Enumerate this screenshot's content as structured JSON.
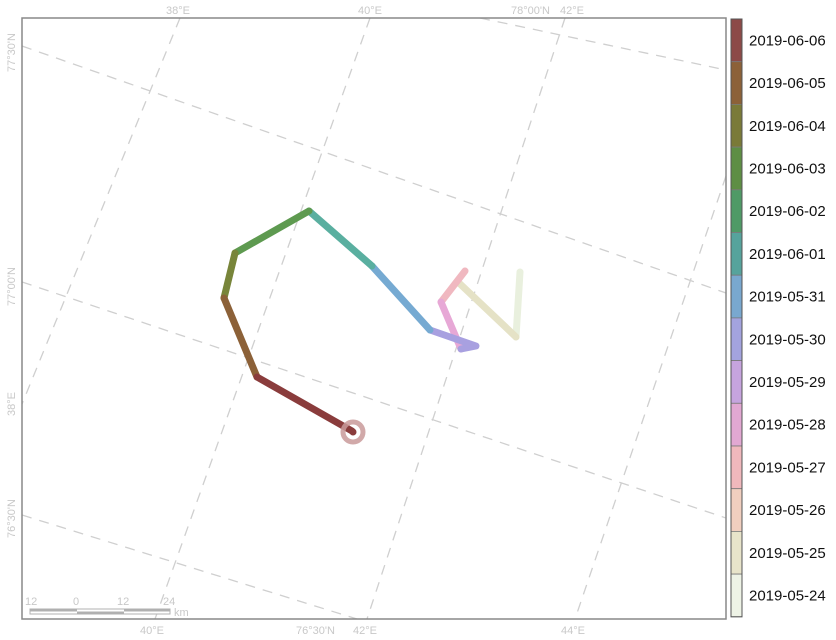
{
  "map": {
    "grid_labels": {
      "top": [
        "38°E",
        "40°E",
        "78°00'N",
        "42°E"
      ],
      "bottom": [
        "40°E",
        "76°30'N",
        "42°E",
        "44°E"
      ],
      "left": [
        "77°30'N",
        "77°00'N",
        "38°E",
        "76°30'N"
      ]
    },
    "scale_bar": {
      "ticks": [
        "12",
        "0",
        "12",
        "24"
      ],
      "unit": "km"
    },
    "track_colors": [
      "#e9f0de",
      "#e5e2c6",
      "#f0b8c0",
      "#e7a8d6",
      "#a8a0e0",
      "#76aad2",
      "#5aafa0",
      "#5e9a50",
      "#78853a",
      "#8c6138",
      "#8a3c3c"
    ],
    "end_marker_color": "#c99a9a"
  },
  "legend": {
    "items": [
      {
        "label": "2019-06-06",
        "color": "#8c4a48"
      },
      {
        "label": "2019-06-05",
        "color": "#8c6138"
      },
      {
        "label": "2019-06-04",
        "color": "#7a7a38"
      },
      {
        "label": "2019-06-03",
        "color": "#5e8e44"
      },
      {
        "label": "2019-06-02",
        "color": "#4f9a66"
      },
      {
        "label": "2019-06-01",
        "color": "#56a39c"
      },
      {
        "label": "2019-05-31",
        "color": "#79a8cf"
      },
      {
        "label": "2019-05-30",
        "color": "#a3a3de"
      },
      {
        "label": "2019-05-29",
        "color": "#c6a4de"
      },
      {
        "label": "2019-05-28",
        "color": "#e2a8d2"
      },
      {
        "label": "2019-05-27",
        "color": "#f0b8bc"
      },
      {
        "label": "2019-05-26",
        "color": "#f1cfbf"
      },
      {
        "label": "2019-05-25",
        "color": "#e8e4ca"
      },
      {
        "label": "2019-05-24",
        "color": "#eef3e6"
      }
    ]
  }
}
